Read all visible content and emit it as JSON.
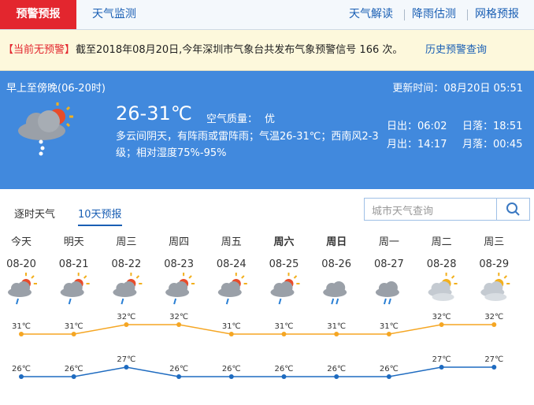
{
  "nav": {
    "tabs": [
      "预警预报",
      "天气监测"
    ],
    "links": [
      "天气解读",
      "降雨估测",
      "网格预报"
    ]
  },
  "alert": {
    "status": "【当前无预警】",
    "message": "截至2018年08月20日,今年深圳市气象台共发布气象预警信号 166 次。",
    "link": "历史预警查询"
  },
  "today": {
    "period": "早上至傍晚(06-20时)",
    "updated": "更新时间：08月20日 05:51",
    "temperature": "26-31℃",
    "air_quality_label": "空气质量：",
    "air_quality": "优",
    "description": "多云间阴天，有阵雨或雷阵雨；气温26-31℃；西南风2-3级；相对湿度75%-95%",
    "sunrise": "日出：06:02",
    "sunset": "日落：18:51",
    "moonrise": "月出：14:17",
    "moonset": "月落：00:45"
  },
  "tabs": [
    "逐时天气",
    "10天预报"
  ],
  "search_placeholder": "城市天气查询",
  "forecast": {
    "days": [
      "今天",
      "明天",
      "周三",
      "周四",
      "周五",
      "周六",
      "周日",
      "周一",
      "周二",
      "周三"
    ],
    "dates": [
      "08-20",
      "08-21",
      "08-22",
      "08-23",
      "08-24",
      "08-25",
      "08-26",
      "08-27",
      "08-28",
      "08-29"
    ],
    "high": {
      "color": "#f5a623",
      "values": [
        31,
        31,
        32,
        32,
        31,
        31,
        31,
        31,
        32,
        32
      ],
      "value_labels": [
        "31℃",
        "31℃",
        "32℃",
        "32℃",
        "31℃",
        "31℃",
        "31℃",
        "31℃",
        "32℃",
        "32℃"
      ]
    },
    "low": {
      "color": "#1e6bc0",
      "values": [
        26,
        26,
        27,
        26,
        26,
        26,
        26,
        26,
        27,
        27
      ],
      "value_labels": [
        "26℃",
        "26℃",
        "27℃",
        "26℃",
        "26℃",
        "26℃",
        "26℃",
        "26℃",
        "27℃",
        "27℃"
      ]
    }
  }
}
